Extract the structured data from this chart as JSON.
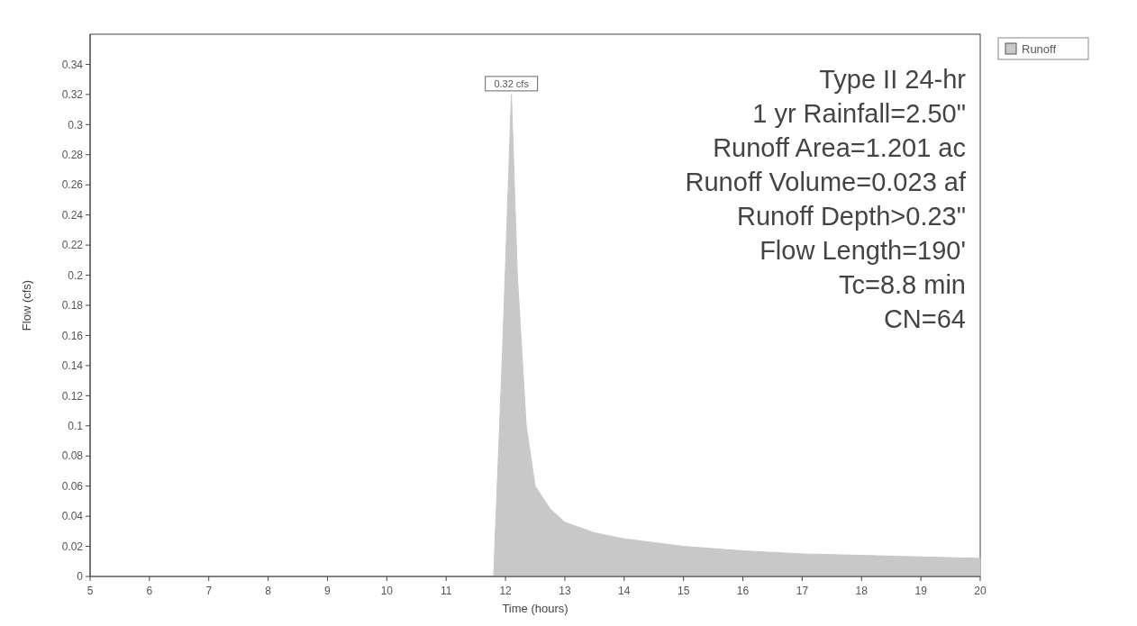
{
  "chart_data": {
    "type": "area",
    "xlabel": "Time (hours)",
    "ylabel": "Flow (cfs)",
    "x": [
      5,
      11.8,
      11.95,
      12.1,
      12.2,
      12.35,
      12.5,
      12.75,
      13,
      13.5,
      14,
      15,
      16,
      17,
      18,
      19,
      20
    ],
    "series": [
      {
        "name": "Runoff",
        "color": "#c8c8c8",
        "values": [
          0,
          0,
          0.15,
          0.32,
          0.2,
          0.1,
          0.06,
          0.045,
          0.036,
          0.029,
          0.025,
          0.02,
          0.017,
          0.015,
          0.014,
          0.013,
          0.012
        ]
      }
    ],
    "xlim": [
      5,
      20
    ],
    "xticks": [
      5,
      6,
      7,
      8,
      9,
      10,
      11,
      12,
      13,
      14,
      15,
      16,
      17,
      18,
      19,
      20
    ],
    "ylim": [
      0,
      0.36
    ],
    "yticks": [
      0,
      0.02,
      0.04,
      0.06,
      0.08,
      0.1,
      0.12,
      0.14,
      0.16,
      0.18,
      0.2,
      0.22,
      0.24,
      0.26,
      0.28,
      0.3,
      0.32,
      0.34
    ],
    "legend": "top right",
    "grid": false,
    "annotations": [
      {
        "text": "0.32 cfs",
        "x": 12.1,
        "y": 0.32
      },
      "Type II 24-hr",
      "1 yr Rainfall=2.50\"",
      "Runoff Area=1.201 ac",
      "Runoff Volume=0.023 af",
      "Runoff Depth>0.23\"",
      "Flow Length=190'",
      "Tc=8.8 min",
      "CN=64"
    ]
  }
}
